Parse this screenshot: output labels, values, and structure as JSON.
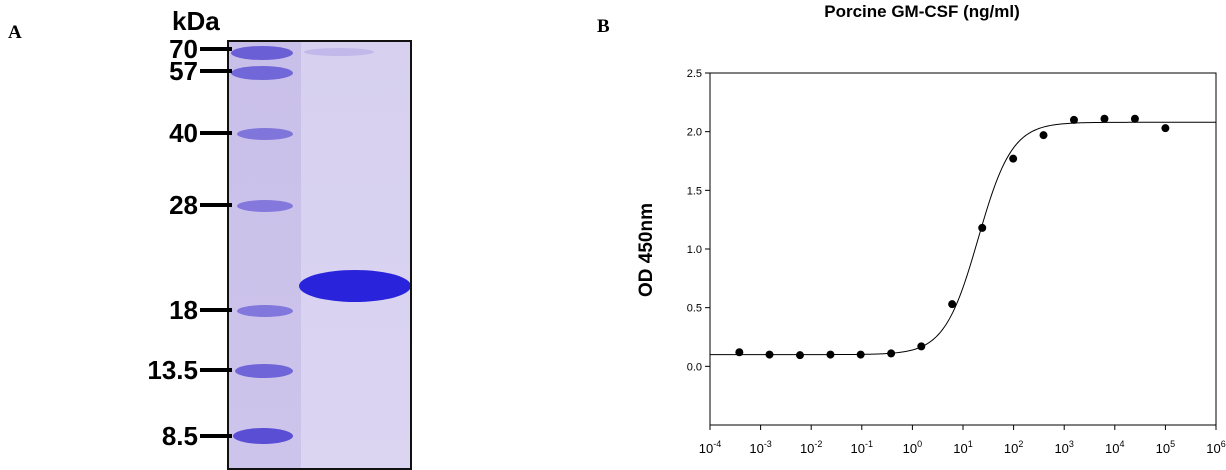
{
  "panels": {
    "a_label": "A",
    "b_label": "B"
  },
  "gel": {
    "unit_label": "kDa",
    "markers": [
      {
        "label": "70",
        "kda": 70
      },
      {
        "label": "57",
        "kda": 57
      },
      {
        "label": "40",
        "kda": 40
      },
      {
        "label": "28",
        "kda": 28
      },
      {
        "label": "18",
        "kda": 18
      },
      {
        "label": "13.5",
        "kda": 13.5
      },
      {
        "label": "8.5",
        "kda": 8.5
      }
    ],
    "colors": {
      "band": "#2a23dc",
      "ladder_band": "#6f63d8",
      "background": "#d8d2f1"
    }
  },
  "chart_data": {
    "type": "scatter",
    "title": "Porcine GM-CSF  (ng/ml)",
    "xlabel": "",
    "ylabel": "OD 450nm",
    "xscale": "log",
    "xlim": [
      0.0001,
      1000000
    ],
    "ylim": [
      -0.5,
      2.5
    ],
    "grid": false,
    "y_ticks": [
      "0.0",
      "0.5",
      "1.0",
      "1.5",
      "2.0",
      "2.5"
    ],
    "x_ticks": [
      {
        "base": "10",
        "exp": "-4"
      },
      {
        "base": "10",
        "exp": "-3"
      },
      {
        "base": "10",
        "exp": "-2"
      },
      {
        "base": "10",
        "exp": "-1"
      },
      {
        "base": "10",
        "exp": "0"
      },
      {
        "base": "10",
        "exp": "1"
      },
      {
        "base": "10",
        "exp": "2"
      },
      {
        "base": "10",
        "exp": "3"
      },
      {
        "base": "10",
        "exp": "4"
      },
      {
        "base": "10",
        "exp": "5"
      },
      {
        "base": "10",
        "exp": "6"
      }
    ],
    "points": [
      {
        "x": 0.00038,
        "y": 0.12
      },
      {
        "x": 0.0015,
        "y": 0.1
      },
      {
        "x": 0.006,
        "y": 0.095
      },
      {
        "x": 0.024,
        "y": 0.1
      },
      {
        "x": 0.095,
        "y": 0.1
      },
      {
        "x": 0.38,
        "y": 0.11
      },
      {
        "x": 1.5,
        "y": 0.17
      },
      {
        "x": 6.1,
        "y": 0.53
      },
      {
        "x": 24,
        "y": 1.18
      },
      {
        "x": 98,
        "y": 1.77
      },
      {
        "x": 390,
        "y": 1.97
      },
      {
        "x": 1560,
        "y": 2.1
      },
      {
        "x": 6250,
        "y": 2.11
      },
      {
        "x": 25000,
        "y": 2.11
      },
      {
        "x": 100000,
        "y": 2.03
      }
    ],
    "fit": {
      "model": "4PL",
      "bottom": 0.1,
      "top": 2.08,
      "ec50": 20,
      "hill": 1.3
    },
    "colors": {
      "points": "#000000",
      "curve": "#000000"
    }
  }
}
